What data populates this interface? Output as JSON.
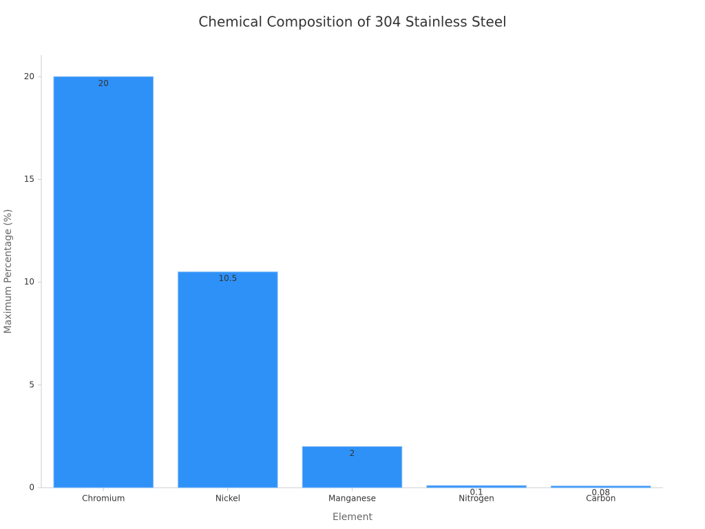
{
  "chart_data": {
    "type": "bar",
    "title": "Chemical Composition of 304 Stainless Steel",
    "x_label": "Element",
    "y_label": "Maximum Percentage (%)",
    "categories": [
      "Chromium",
      "Nickel",
      "Manganese",
      "Nitrogen",
      "Carbon"
    ],
    "values": [
      20,
      10.5,
      2,
      0.1,
      0.08
    ],
    "color": "#2e91f8",
    "ylim": [
      0,
      21.05
    ],
    "yticks": [
      0,
      5,
      10,
      15,
      20
    ],
    "grid": false
  }
}
